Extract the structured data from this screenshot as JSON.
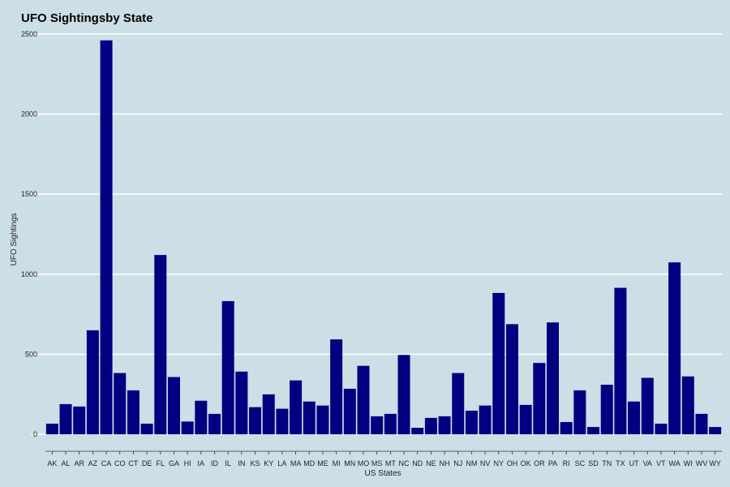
{
  "chart_data": {
    "type": "bar",
    "title": "UFO Sightingsby State",
    "xlabel": "US States",
    "ylabel": "UFO Sightings",
    "ylim": [
      -60,
      2560
    ],
    "yticks": [
      0,
      500,
      1000,
      1500,
      2000,
      2500
    ],
    "grid": true,
    "legend": "none",
    "colors": {
      "background": "#cddfe6",
      "bar": "#000080",
      "grid": "#ffffff"
    },
    "categories": [
      "AK",
      "AL",
      "AR",
      "AZ",
      "CA",
      "CO",
      "CT",
      "DE",
      "FL",
      "GA",
      "HI",
      "IA",
      "ID",
      "IL",
      "IN",
      "KS",
      "KY",
      "LA",
      "MA",
      "MD",
      "ME",
      "MI",
      "MN",
      "MO",
      "MS",
      "MT",
      "NC",
      "ND",
      "NE",
      "NH",
      "NJ",
      "NM",
      "NV",
      "NY",
      "OH",
      "OK",
      "OR",
      "PA",
      "RI",
      "SC",
      "SD",
      "TN",
      "TX",
      "UT",
      "VA",
      "VT",
      "WA",
      "WI",
      "WV",
      "WY"
    ],
    "values": [
      67,
      189,
      174,
      650,
      2460,
      383,
      275,
      67,
      1120,
      358,
      80,
      210,
      128,
      832,
      392,
      170,
      250,
      160,
      337,
      205,
      180,
      593,
      285,
      428,
      113,
      128,
      496,
      41,
      103,
      113,
      383,
      148,
      180,
      883,
      688,
      184,
      446,
      699,
      77,
      275,
      46,
      310,
      915,
      205,
      353,
      67,
      1074,
      362,
      128,
      46
    ]
  }
}
